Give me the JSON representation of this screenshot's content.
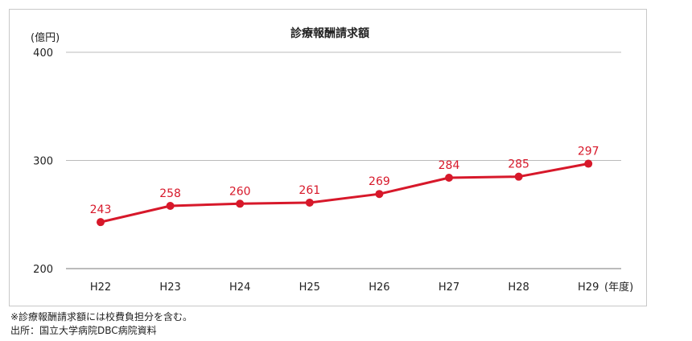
{
  "chart_data": {
    "type": "line",
    "title": "診療報酬請求額",
    "ylabel": "(億円)",
    "xlabel": "(年度)",
    "categories": [
      "H22",
      "H23",
      "H24",
      "H25",
      "H26",
      "H27",
      "H28",
      "H29"
    ],
    "series": [
      {
        "values": [
          243,
          258,
          260,
          261,
          269,
          284,
          285,
          297
        ]
      }
    ],
    "ylim": [
      200,
      400
    ],
    "yticks": [
      200,
      300,
      400
    ],
    "grid": true,
    "color": "#d7182a"
  },
  "notes": {
    "note1": "※診療報酬請求額には校費負担分を含む。",
    "note2": "出所：国立大学病院DBC病院資料"
  }
}
